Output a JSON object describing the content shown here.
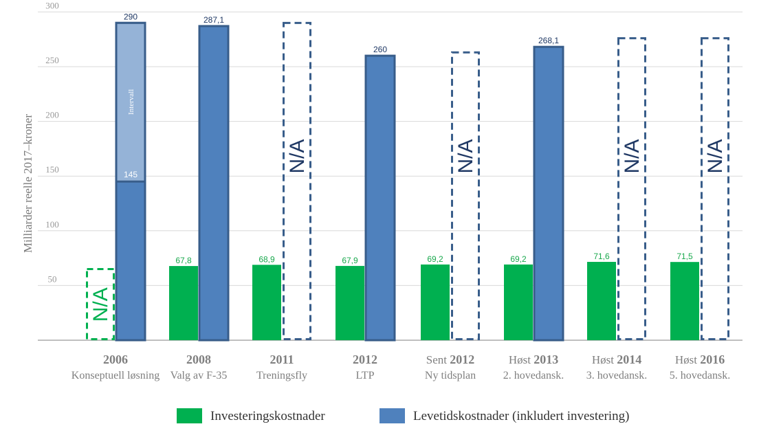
{
  "chart_data": {
    "type": "bar",
    "ylabel": "Milliarder reelle 2017–kroner",
    "ylim": [
      0,
      300
    ],
    "yticks": [
      50,
      100,
      150,
      200,
      250,
      300
    ],
    "grid": true,
    "legend_position": "bottom",
    "categories": [
      {
        "pre": "",
        "year": "2006",
        "sub": "Konseptuell løsning"
      },
      {
        "pre": "",
        "year": "2008",
        "sub": "Valg av F-35"
      },
      {
        "pre": "",
        "year": "2011",
        "sub": "Treningsfly"
      },
      {
        "pre": "",
        "year": "2012",
        "sub": "LTP"
      },
      {
        "pre": "Sent ",
        "year": "2012",
        "sub": "Ny tidsplan"
      },
      {
        "pre": "Høst ",
        "year": "2013",
        "sub": "2. hovedansk."
      },
      {
        "pre": "Høst ",
        "year": "2014",
        "sub": "3. hovedansk."
      },
      {
        "pre": "Høst ",
        "year": "2016",
        "sub": "5. hovedansk."
      }
    ],
    "series": [
      {
        "name": "Investeringskostnader",
        "color": "#00b050",
        "values": [
          null,
          67.8,
          68.9,
          67.9,
          69.2,
          69.2,
          71.6,
          71.5
        ],
        "labels": [
          "N/A",
          "67,8",
          "68,9",
          "67,9",
          "69,2",
          "69,2",
          "71,6",
          "71,5"
        ]
      },
      {
        "name": "Levetidskostnader (inkludert investering)",
        "color": "#4f81bd",
        "values": [
          290,
          287.1,
          null,
          260,
          null,
          268.1,
          null,
          null
        ],
        "labels": [
          "290",
          "287,1",
          "N/A",
          "260",
          "N/A",
          "268,1",
          "N/A",
          "N/A"
        ]
      }
    ],
    "placeholder_values": {
      "green_na": [
        65,
        null,
        null,
        null,
        null,
        null,
        null,
        null
      ],
      "blue_na": [
        null,
        null,
        290,
        null,
        263,
        null,
        276,
        276
      ]
    },
    "interval": {
      "category_index": 0,
      "low": 145,
      "high": 290,
      "low_label": "145",
      "label": "Intervall",
      "color": "#95b3d7"
    }
  },
  "colors": {
    "green": "#00b050",
    "blue": "#4f81bd",
    "border": "#385d8a",
    "na_blue": "#1f3864",
    "grid": "#d9d9d9"
  }
}
